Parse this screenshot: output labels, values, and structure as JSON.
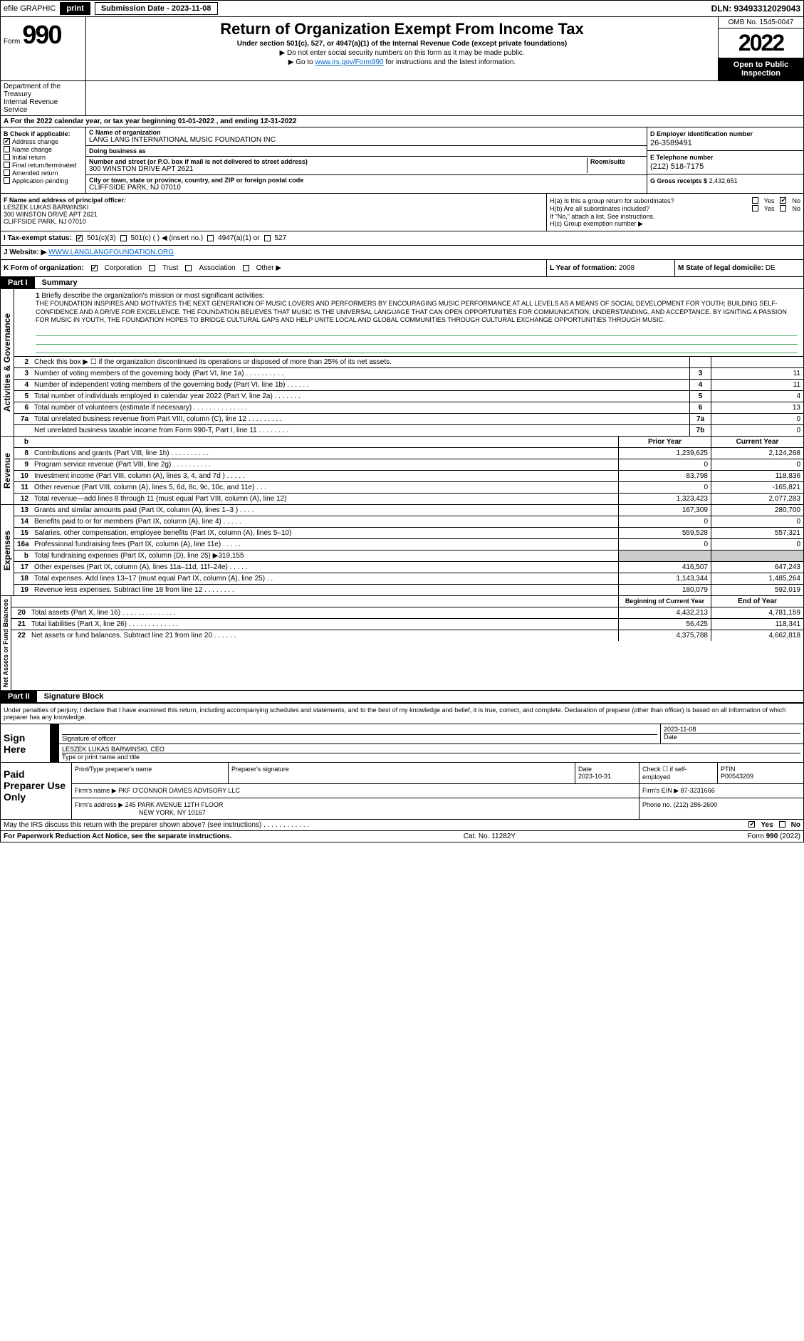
{
  "topbar": {
    "efile": "efile GRAPHIC",
    "print": "print",
    "submission": "Submission Date - 2023-11-08",
    "dln": "DLN: 93493312029043"
  },
  "header": {
    "form_label": "Form",
    "form_num": "990",
    "title": "Return of Organization Exempt From Income Tax",
    "subtitle": "Under section 501(c), 527, or 4947(a)(1) of the Internal Revenue Code (except private foundations)",
    "sub2": "▶ Do not enter social security numbers on this form as it may be made public.",
    "sub3_pre": "▶ Go to ",
    "sub3_link": "www.irs.gov/Form990",
    "sub3_post": " for instructions and the latest information.",
    "omb": "OMB No. 1545-0047",
    "year": "2022",
    "open": "Open to Public Inspection",
    "dept": "Department of the Treasury",
    "irs": "Internal Revenue Service"
  },
  "a": "For the 2022 calendar year, or tax year beginning 01-01-2022   , and ending 12-31-2022",
  "b": {
    "label": "B Check if applicable:",
    "items": [
      {
        "label": "Address change",
        "checked": true
      },
      {
        "label": "Name change",
        "checked": false
      },
      {
        "label": "Initial return",
        "checked": false
      },
      {
        "label": "Final return/terminated",
        "checked": false
      },
      {
        "label": "Amended return",
        "checked": false
      },
      {
        "label": "Application pending",
        "checked": false
      }
    ]
  },
  "c": {
    "name_label": "C Name of organization",
    "name": "LANG LANG INTERNATIONAL MUSIC FOUNDATION INC",
    "dba_label": "Doing business as",
    "dba": "",
    "addr_label": "Number and street (or P.O. box if mail is not delivered to street address)",
    "room_label": "Room/suite",
    "addr": "300 WINSTON DRIVE APT 2621",
    "city_label": "City or town, state or province, country, and ZIP or foreign postal code",
    "city": "CLIFFSIDE PARK, NJ  07010"
  },
  "d": {
    "label": "D Employer identification number",
    "val": "26-3589491"
  },
  "e": {
    "label": "E Telephone number",
    "val": "(212) 518-7175"
  },
  "g": {
    "label": "G Gross receipts $",
    "val": "2,432,651"
  },
  "f": {
    "label": "F  Name and address of principal officer:",
    "name": "LESZEK LUKAS BARWINSKI",
    "addr1": "300 WINSTON DRIVE APT 2621",
    "addr2": "CLIFFSIDE PARK, NJ  07010"
  },
  "h": {
    "a_label": "H(a)  Is this a group return for subordinates?",
    "a_no": true,
    "b_label": "H(b)  Are all subordinates included?",
    "note": "If \"No,\" attach a list. See instructions.",
    "c_label": "H(c)  Group exemption number ▶"
  },
  "i": {
    "label": "I   Tax-exempt status:",
    "c3": true,
    "c3_label": "501(c)(3)",
    "c_label": "501(c) (   ) ◀ (insert no.)",
    "a1_label": "4947(a)(1) or",
    "527_label": "527"
  },
  "j": {
    "label": "J   Website: ▶",
    "val": "WWW.LANGLANGFOUNDATION.ORG"
  },
  "k": {
    "label": "K Form of organization:",
    "corp": true,
    "corp_label": "Corporation",
    "trust_label": "Trust",
    "assoc_label": "Association",
    "other_label": "Other ▶"
  },
  "l": {
    "label": "L Year of formation:",
    "val": "2008"
  },
  "m": {
    "label": "M State of legal domicile:",
    "val": "DE"
  },
  "part1": {
    "tag": "Part I",
    "title": "Summary"
  },
  "mission": {
    "num": "1",
    "label": "Briefly describe the organization's mission or most significant activities:",
    "text": "THE FOUNDATION INSPIRES AND MOTIVATES THE NEXT GENERATION OF MUSIC LOVERS AND PERFORMERS BY ENCOURAGING MUSIC PERFORMANCE AT ALL LEVELS AS A MEANS OF SOCIAL DEVELOPMENT FOR YOUTH; BUILDING SELF-CONFIDENCE AND A DRIVE FOR EXCELLENCE. THE FOUNDATION BELIEVES THAT MUSIC IS THE UNIVERSAL LANGUAGE THAT CAN OPEN OPPORTUNITIES FOR COMMUNICATION, UNDERSTANDING, AND ACCEPTANCE. BY IGNITING A PASSION FOR MUSIC IN YOUTH, THE FOUNDATION HOPES TO BRIDGE CULTURAL GAPS AND HELP UNITE LOCAL AND GLOBAL COMMUNITIES THROUGH CULTURAL EXCHANGE OPPORTUNITIES THROUGH MUSIC."
  },
  "gov_rows": [
    {
      "n": "2",
      "t": "Check this box ▶ ☐ if the organization discontinued its operations or disposed of more than 25% of its net assets.",
      "box": "",
      "v": ""
    },
    {
      "n": "3",
      "t": "Number of voting members of the governing body (Part VI, line 1a)  .    .    .    .    .    .    .    .    .    .",
      "box": "3",
      "v": "11"
    },
    {
      "n": "4",
      "t": "Number of independent voting members of the governing body (Part VI, line 1b)  .    .    .    .    .    .",
      "box": "4",
      "v": "11"
    },
    {
      "n": "5",
      "t": "Total number of individuals employed in calendar year 2022 (Part V, line 2a)  .    .    .    .    .    .    .",
      "box": "5",
      "v": "4"
    },
    {
      "n": "6",
      "t": "Total number of volunteers (estimate if necessary)  .    .    .    .    .    .    .    .    .    .    .    .    .    .",
      "box": "6",
      "v": "13"
    },
    {
      "n": "7a",
      "t": "Total unrelated business revenue from Part VIII, column (C), line 12  .    .    .    .    .    .    .    .    .",
      "box": "7a",
      "v": "0"
    },
    {
      "n": "",
      "t": "Net unrelated business taxable income from Form 990-T, Part I, line 11  .    .    .    .    .    .    .    .",
      "box": "7b",
      "v": "0"
    }
  ],
  "col_hdr": {
    "b": "b",
    "prior": "Prior Year",
    "current": "Current Year"
  },
  "rev_rows": [
    {
      "n": "8",
      "t": "Contributions and grants (Part VIII, line 1h)  .    .    .    .    .    .    .    .    .    .",
      "p": "1,239,625",
      "c": "2,124,268"
    },
    {
      "n": "9",
      "t": "Program service revenue (Part VIII, line 2g)  .    .    .    .    .    .    .    .    .    .",
      "p": "0",
      "c": "0"
    },
    {
      "n": "10",
      "t": "Investment income (Part VIII, column (A), lines 3, 4, and 7d )  .    .    .    .    .",
      "p": "83,798",
      "c": "118,836"
    },
    {
      "n": "11",
      "t": "Other revenue (Part VIII, column (A), lines 5, 6d, 8c, 9c, 10c, and 11e)  .    .    .",
      "p": "0",
      "c": "-165,821"
    },
    {
      "n": "12",
      "t": "Total revenue—add lines 8 through 11 (must equal Part VIII, column (A), line 12)",
      "p": "1,323,423",
      "c": "2,077,283"
    }
  ],
  "exp_rows": [
    {
      "n": "13",
      "t": "Grants and similar amounts paid (Part IX, column (A), lines 1–3 )  .    .    .    .",
      "p": "167,309",
      "c": "280,700"
    },
    {
      "n": "14",
      "t": "Benefits paid to or for members (Part IX, column (A), line 4)  .    .    .    .    .",
      "p": "0",
      "c": "0"
    },
    {
      "n": "15",
      "t": "Salaries, other compensation, employee benefits (Part IX, column (A), lines 5–10)",
      "p": "559,528",
      "c": "557,321"
    },
    {
      "n": "16a",
      "t": "Professional fundraising fees (Part IX, column (A), line 11e)  .    .    .    .    .",
      "p": "0",
      "c": "0"
    },
    {
      "n": "b",
      "t": "Total fundraising expenses (Part IX, column (D), line 25) ▶319,155",
      "p": "",
      "c": "",
      "grey": true
    },
    {
      "n": "17",
      "t": "Other expenses (Part IX, column (A), lines 11a–11d, 11f–24e)  .    .    .    .    .",
      "p": "416,507",
      "c": "647,243"
    },
    {
      "n": "18",
      "t": "Total expenses. Add lines 13–17 (must equal Part IX, column (A), line 25)  .    .",
      "p": "1,143,344",
      "c": "1,485,264"
    },
    {
      "n": "19",
      "t": "Revenue less expenses. Subtract line 18 from line 12  .    .    .    .    .    .    .    .",
      "p": "180,079",
      "c": "592,019"
    }
  ],
  "na_hdr": {
    "prior": "Beginning of Current Year",
    "current": "End of Year"
  },
  "na_rows": [
    {
      "n": "20",
      "t": "Total assets (Part X, line 16)  .    .    .    .    .    .    .    .    .    .    .    .    .    .",
      "p": "4,432,213",
      "c": "4,781,159"
    },
    {
      "n": "21",
      "t": "Total liabilities (Part X, line 26)  .    .    .    .    .    .    .    .    .    .    .    .    .",
      "p": "56,425",
      "c": "118,341"
    },
    {
      "n": "22",
      "t": "Net assets or fund balances. Subtract line 21 from line 20  .    .    .    .    .    .",
      "p": "4,375,788",
      "c": "4,662,818"
    }
  ],
  "side": {
    "gov": "Activities & Governance",
    "rev": "Revenue",
    "exp": "Expenses",
    "na": "Net Assets or Fund Balances"
  },
  "part2": {
    "tag": "Part II",
    "title": "Signature Block"
  },
  "sig": {
    "disclaimer": "Under penalties of perjury, I declare that I have examined this return, including accompanying schedules and statements, and to the best of my knowledge and belief, it is true, correct, and complete. Declaration of preparer (other than officer) is based on all information of which preparer has any knowledge.",
    "here": "Sign Here",
    "sig_label": "Signature of officer",
    "date_label": "Date",
    "date": "2023-11-08",
    "name": "LESZEK LUKAS BARWINSKI, CEO",
    "name_label": "Type or print name and title"
  },
  "paid": {
    "label": "Paid Preparer Use Only",
    "h1": "Print/Type preparer's name",
    "h2": "Preparer's signature",
    "h3": "Date",
    "h3v": "2023-10-31",
    "h4": "Check ☐ if self-employed",
    "h5": "PTIN",
    "h5v": "P00543209",
    "firm_label": "Firm's name    ▶",
    "firm": "PKF O'CONNOR DAVIES ADVISORY LLC",
    "ein_label": "Firm's EIN ▶",
    "ein": "87-3231666",
    "addr_label": "Firm's address ▶",
    "addr1": "245 PARK AVENUE 12TH FLOOR",
    "addr2": "NEW YORK, NY  10167",
    "phone_label": "Phone no.",
    "phone": "(212) 286-2600"
  },
  "footer": {
    "q": "May the IRS discuss this return with the preparer shown above? (see instructions)  .    .    .    .    .    .    .    .    .    .    .    .",
    "yes": true,
    "paperwork": "For Paperwork Reduction Act Notice, see the separate instructions.",
    "cat": "Cat. No. 11282Y",
    "form": "Form 990 (2022)"
  }
}
